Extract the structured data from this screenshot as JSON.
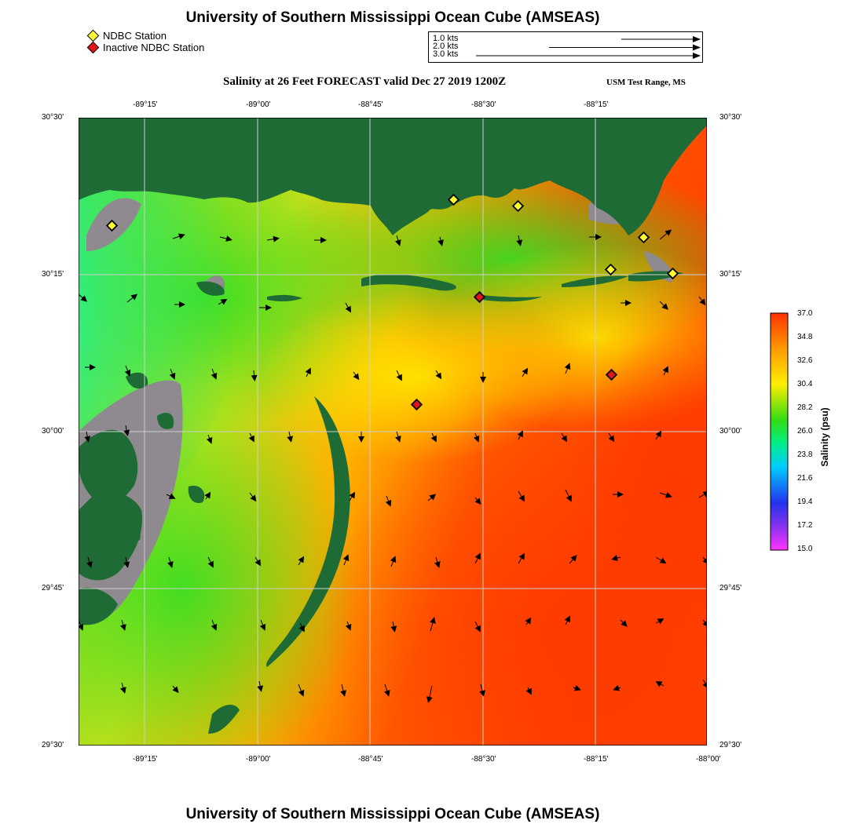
{
  "header": {
    "title": "University of Southern Mississippi Ocean Cube (AMSEAS)",
    "footer_title": "University of Southern Mississippi Ocean Cube (AMSEAS)",
    "map_title": "Salinity at 26 Feet FORECAST valid Dec 27 2019 1200Z",
    "region": "USM Test Range, MS"
  },
  "legend": {
    "active_label": "NDBC Station",
    "inactive_label": "Inactive NDBC Station",
    "active_color": "#ffff33",
    "inactive_color": "#e0161b"
  },
  "vector_scale": {
    "items": [
      {
        "label": "1.0 kts"
      },
      {
        "label": "2.0 kts"
      },
      {
        "label": "3.0 kts"
      }
    ]
  },
  "axes": {
    "lon_ticks": [
      "-89°15'",
      "-89°00'",
      "-88°45'",
      "-88°30'",
      "-88°15'",
      "-88°00'"
    ],
    "lat_ticks": [
      "30°30'",
      "30°15'",
      "30°00'",
      "29°45'",
      "29°30'"
    ]
  },
  "colorbar": {
    "label": "Salinity (psu)",
    "ticks": [
      "37.0",
      "34.8",
      "32.6",
      "30.4",
      "28.2",
      "26.0",
      "23.8",
      "21.6",
      "19.4",
      "17.2",
      "15.0"
    ],
    "min": 15.0,
    "max": 37.0
  },
  "colors": {
    "land": "#1f6b35",
    "land_mask": "#8f8a8f"
  }
}
